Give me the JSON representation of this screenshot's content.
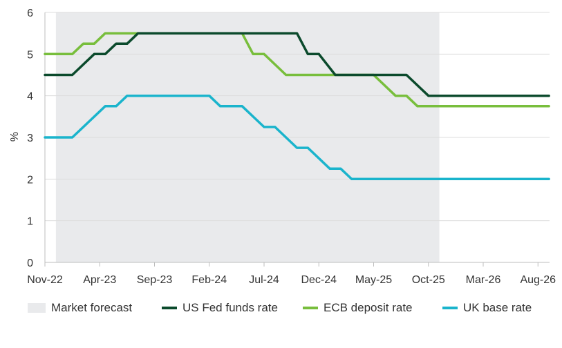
{
  "chart_data": {
    "type": "line",
    "ylabel": "%",
    "ylim": [
      0,
      6
    ],
    "yticks": [
      0,
      1,
      2,
      3,
      4,
      5,
      6
    ],
    "grid": true,
    "x_tick_labels": [
      "Nov-22",
      "Apr-23",
      "Sep-23",
      "Feb-24",
      "Jul-24",
      "Dec-24",
      "May-25",
      "Oct-25",
      "Mar-26",
      "Aug-26"
    ],
    "x_start": "Nov-22",
    "x_months_total": 46,
    "forecast_region": {
      "label": "Market forecast",
      "start_month": 1,
      "end_month": 36,
      "color": "#e9eaec"
    },
    "series": [
      {
        "name": "US Fed funds rate",
        "color": "#0b4a2c",
        "points": [
          [
            0,
            4.5
          ],
          [
            2.5,
            4.5
          ],
          [
            4.5,
            5
          ],
          [
            5.5,
            5
          ],
          [
            6.5,
            5.25
          ],
          [
            7.5,
            5.25
          ],
          [
            8.5,
            5.5
          ],
          [
            21,
            5.5
          ],
          [
            23,
            5.5
          ],
          [
            24,
            5
          ],
          [
            25,
            5
          ],
          [
            26.5,
            4.5
          ],
          [
            33,
            4.5
          ],
          [
            35,
            4
          ],
          [
            46,
            4
          ]
        ]
      },
      {
        "name": "ECB deposit rate",
        "color": "#78be3c",
        "points": [
          [
            0,
            5
          ],
          [
            2.5,
            5
          ],
          [
            3.5,
            5.25
          ],
          [
            4.5,
            5.25
          ],
          [
            5.5,
            5.5
          ],
          [
            18,
            5.5
          ],
          [
            19,
            5
          ],
          [
            20,
            5
          ],
          [
            22,
            4.5
          ],
          [
            30,
            4.5
          ],
          [
            32,
            4
          ],
          [
            33,
            4
          ],
          [
            34,
            3.75
          ],
          [
            46,
            3.75
          ]
        ]
      },
      {
        "name": "UK base rate",
        "color": "#1ab4cc",
        "points": [
          [
            0,
            3
          ],
          [
            2.5,
            3
          ],
          [
            5.5,
            3.75
          ],
          [
            6.5,
            3.75
          ],
          [
            7.5,
            4
          ],
          [
            15,
            4
          ],
          [
            16,
            3.75
          ],
          [
            18,
            3.75
          ],
          [
            20,
            3.25
          ],
          [
            21,
            3.25
          ],
          [
            23,
            2.75
          ],
          [
            24,
            2.75
          ],
          [
            26,
            2.25
          ],
          [
            27,
            2.25
          ],
          [
            28,
            2
          ],
          [
            46,
            2
          ]
        ]
      }
    ]
  }
}
